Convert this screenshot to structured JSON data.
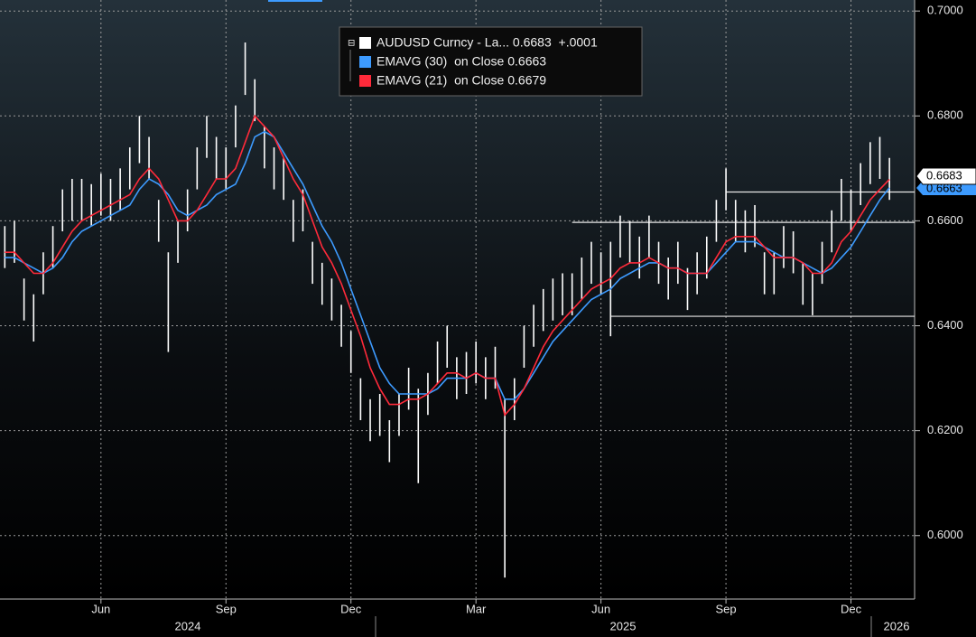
{
  "chart_data": {
    "type": "line",
    "legend_corner": "top",
    "grid": true,
    "ylim": [
      0.5879,
      0.7021
    ],
    "yticks": [
      {
        "value": 0.6,
        "label": "0.6000"
      },
      {
        "value": 0.62,
        "label": "0.6200"
      },
      {
        "value": 0.64,
        "label": "0.6400"
      },
      {
        "value": 0.66,
        "label": "0.6600"
      },
      {
        "value": 0.68,
        "label": "0.6800"
      },
      {
        "value": 0.7,
        "label": "0.7000"
      }
    ],
    "year_labels": [
      "2024",
      "2025",
      "2026"
    ],
    "last_value_labels": [
      "0.6683",
      "0.6663"
    ],
    "categories": [
      null,
      null,
      null,
      null,
      null,
      null,
      null,
      null,
      null,
      null,
      "Jun",
      null,
      null,
      null,
      null,
      null,
      null,
      null,
      null,
      null,
      null,
      null,
      null,
      "Sep",
      null,
      null,
      null,
      null,
      null,
      null,
      null,
      null,
      null,
      null,
      null,
      null,
      "Dec",
      null,
      null,
      null,
      null,
      null,
      null,
      null,
      null,
      null,
      null,
      null,
      null,
      "Mar",
      null,
      null,
      null,
      null,
      null,
      null,
      null,
      null,
      null,
      null,
      null,
      null,
      "Jun",
      null,
      null,
      null,
      null,
      null,
      null,
      null,
      null,
      null,
      null,
      null,
      null,
      "Sep",
      null,
      null,
      null,
      null,
      null,
      null,
      null,
      null,
      null,
      null,
      null,
      null,
      "Dec",
      null,
      null,
      null,
      null
    ],
    "hlines": [
      {
        "value": 0.6655,
        "from_index": 75
      },
      {
        "value": 0.6597,
        "from_index": 59
      },
      {
        "value": 0.6418,
        "from_index": 63
      }
    ],
    "series": [
      {
        "name": "AUDUSD Curncy - La... 0.6683  +.0001",
        "color": "#ffffff",
        "high": [
          0.659,
          0.66,
          0.649,
          0.646,
          0.654,
          0.659,
          0.666,
          0.668,
          0.668,
          0.667,
          0.669,
          0.668,
          0.67,
          0.674,
          0.68,
          0.676,
          0.664,
          0.654,
          0.66,
          0.666,
          0.674,
          0.68,
          0.676,
          0.674,
          0.682,
          0.694,
          0.687,
          0.678,
          0.674,
          0.672,
          0.664,
          0.666,
          0.656,
          0.652,
          0.649,
          0.644,
          0.639,
          0.63,
          0.626,
          0.627,
          0.622,
          0.627,
          0.632,
          0.628,
          0.631,
          0.637,
          0.64,
          0.634,
          0.635,
          0.637,
          0.634,
          0.636,
          0.626,
          0.63,
          0.64,
          0.644,
          0.647,
          0.649,
          0.65,
          0.65,
          0.653,
          0.656,
          0.654,
          0.656,
          0.661,
          0.66,
          0.657,
          0.661,
          0.656,
          0.653,
          0.656,
          0.651,
          0.654,
          0.657,
          0.664,
          0.67,
          0.664,
          0.662,
          0.663,
          0.654,
          0.654,
          0.659,
          0.658,
          0.652,
          0.65,
          0.656,
          0.662,
          0.668,
          0.666,
          0.671,
          0.675,
          0.676,
          0.672
        ],
        "low": [
          0.651,
          0.652,
          0.641,
          0.637,
          0.646,
          0.651,
          0.658,
          0.66,
          0.66,
          0.659,
          0.661,
          0.66,
          0.662,
          0.666,
          0.671,
          0.668,
          0.656,
          0.635,
          0.652,
          0.658,
          0.666,
          0.672,
          0.668,
          0.666,
          0.674,
          0.684,
          0.679,
          0.67,
          0.666,
          0.664,
          0.656,
          0.658,
          0.648,
          0.644,
          0.641,
          0.636,
          0.631,
          0.622,
          0.618,
          0.619,
          0.614,
          0.619,
          0.624,
          0.61,
          0.623,
          0.629,
          0.632,
          0.626,
          0.627,
          0.629,
          0.626,
          0.628,
          0.592,
          0.622,
          0.632,
          0.636,
          0.639,
          0.641,
          0.642,
          0.642,
          0.645,
          0.648,
          0.646,
          0.638,
          0.653,
          0.652,
          0.649,
          0.653,
          0.648,
          0.645,
          0.648,
          0.643,
          0.646,
          0.649,
          0.656,
          0.662,
          0.656,
          0.654,
          0.655,
          0.646,
          0.646,
          0.651,
          0.65,
          0.644,
          0.642,
          0.648,
          0.654,
          0.66,
          0.658,
          0.663,
          0.667,
          0.668,
          0.664
        ]
      },
      {
        "name": "EMAVG (30)  on Close 0.6663",
        "color": "#3d9bff",
        "values": [
          0.653,
          0.653,
          0.652,
          0.651,
          0.65,
          0.651,
          0.653,
          0.656,
          0.658,
          0.659,
          0.66,
          0.661,
          0.662,
          0.663,
          0.666,
          0.668,
          0.667,
          0.665,
          0.662,
          0.661,
          0.662,
          0.663,
          0.665,
          0.666,
          0.667,
          0.671,
          0.676,
          0.677,
          0.676,
          0.673,
          0.67,
          0.667,
          0.663,
          0.659,
          0.656,
          0.652,
          0.647,
          0.642,
          0.637,
          0.632,
          0.629,
          0.627,
          0.627,
          0.627,
          0.627,
          0.628,
          0.63,
          0.63,
          0.63,
          0.631,
          0.63,
          0.63,
          0.626,
          0.626,
          0.628,
          0.631,
          0.634,
          0.637,
          0.639,
          0.641,
          0.643,
          0.645,
          0.646,
          0.647,
          0.649,
          0.65,
          0.651,
          0.652,
          0.652,
          0.651,
          0.651,
          0.65,
          0.65,
          0.65,
          0.652,
          0.654,
          0.656,
          0.656,
          0.656,
          0.655,
          0.654,
          0.653,
          0.653,
          0.652,
          0.651,
          0.65,
          0.651,
          0.653,
          0.655,
          0.658,
          0.661,
          0.664,
          0.6663
        ]
      },
      {
        "name": "EMAVG (21)  on Close 0.6679",
        "color": "#ff2a3a",
        "values": [
          0.654,
          0.654,
          0.652,
          0.65,
          0.65,
          0.652,
          0.655,
          0.658,
          0.66,
          0.661,
          0.662,
          0.663,
          0.664,
          0.665,
          0.668,
          0.67,
          0.668,
          0.664,
          0.66,
          0.66,
          0.662,
          0.665,
          0.668,
          0.668,
          0.67,
          0.675,
          0.68,
          0.678,
          0.676,
          0.672,
          0.668,
          0.665,
          0.66,
          0.655,
          0.652,
          0.648,
          0.643,
          0.638,
          0.632,
          0.628,
          0.625,
          0.625,
          0.626,
          0.626,
          0.627,
          0.629,
          0.631,
          0.631,
          0.63,
          0.631,
          0.63,
          0.63,
          0.623,
          0.625,
          0.628,
          0.632,
          0.636,
          0.639,
          0.641,
          0.643,
          0.645,
          0.647,
          0.648,
          0.649,
          0.651,
          0.652,
          0.652,
          0.653,
          0.652,
          0.651,
          0.651,
          0.65,
          0.65,
          0.65,
          0.653,
          0.656,
          0.657,
          0.657,
          0.657,
          0.655,
          0.653,
          0.653,
          0.653,
          0.652,
          0.65,
          0.65,
          0.652,
          0.656,
          0.658,
          0.661,
          0.664,
          0.666,
          0.6679
        ]
      }
    ]
  }
}
